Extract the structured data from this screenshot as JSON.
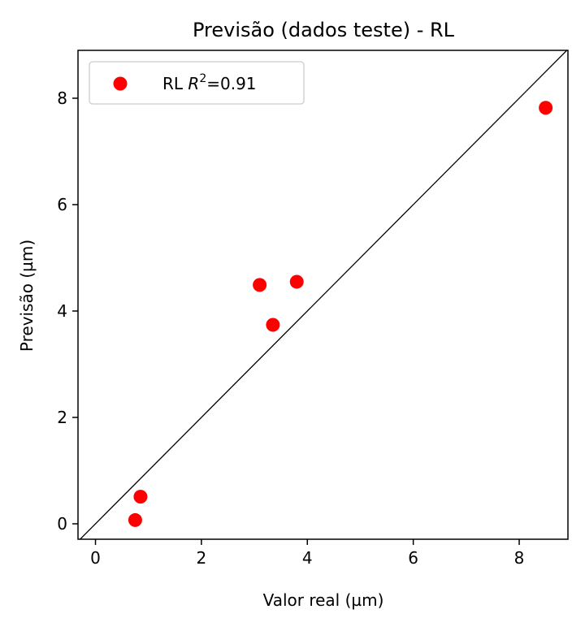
{
  "chart_data": {
    "type": "scatter",
    "title": "Previsão (dados teste) - RL",
    "xlabel": "Valor real (µm)",
    "ylabel": "Previsão (µm)",
    "xlim": [
      -0.33,
      8.92
    ],
    "ylim": [
      -0.29,
      8.9
    ],
    "xticks": [
      0,
      2,
      4,
      6,
      8
    ],
    "yticks": [
      0,
      2,
      4,
      6,
      8
    ],
    "grid": false,
    "legend_position": "top-left",
    "identity_line": true,
    "identity_line_color": "#000000",
    "series": [
      {
        "name_prefix": "RL ",
        "name_math": "R",
        "name_sup": "2",
        "name_suffix": "=0.91",
        "color": "#ff0000",
        "x": [
          8.5,
          3.8,
          3.1,
          3.35,
          0.85,
          0.75
        ],
        "y": [
          7.82,
          4.55,
          4.49,
          3.74,
          0.51,
          0.07
        ]
      }
    ]
  }
}
